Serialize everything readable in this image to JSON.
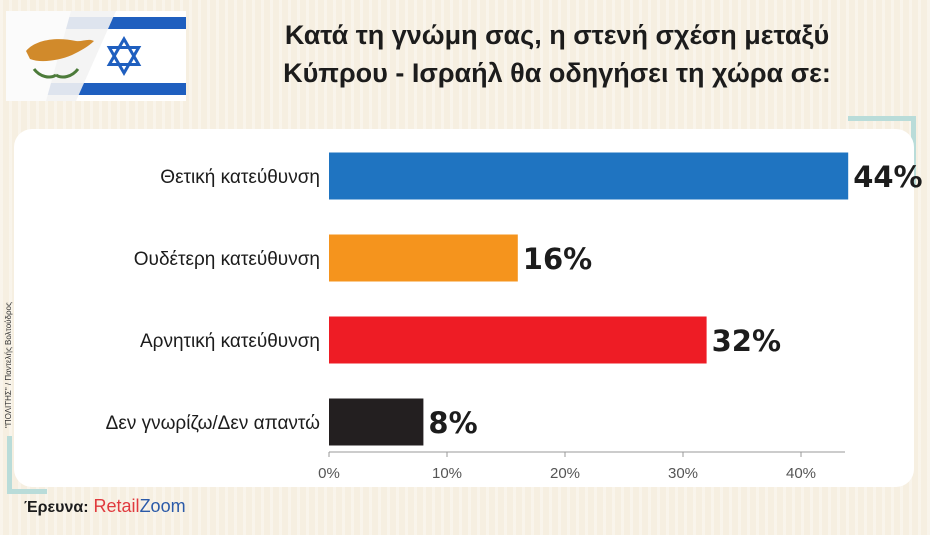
{
  "chart_data": {
    "type": "bar",
    "orientation": "horizontal",
    "title_lines": [
      "Κατά τη γνώμη σας, η στενή σχέση μεταξύ",
      "Κύπρου - Ισραήλ θα οδηγήσει τη χώρα σε:"
    ],
    "categories": [
      "Θετική κατεύθυνση",
      "Ουδέτερη κατεύθυνση",
      "Αρνητική κατεύθυνση",
      "Δεν γνωρίζω/Δεν απαντώ"
    ],
    "values": [
      44,
      16,
      32,
      8
    ],
    "value_labels": [
      "44%",
      "16%",
      "32%",
      "8%"
    ],
    "colors": [
      "#1f74c1",
      "#f5941d",
      "#ee1c25",
      "#231f20"
    ],
    "xticks": [
      "0%",
      "10%",
      "20%",
      "30%",
      "40%"
    ],
    "xlim": [
      0,
      45
    ],
    "grid": false,
    "legend": "none"
  },
  "source": {
    "label": "Έρευνα:",
    "brand_part1": "Retail",
    "brand_part2": "Zoom"
  },
  "credit": "\"ΠΟΛΙΤΗΣ\" / Παντελής Βολτούδρος",
  "flag": {
    "icon": "cyprus-israel-flag-icon"
  }
}
